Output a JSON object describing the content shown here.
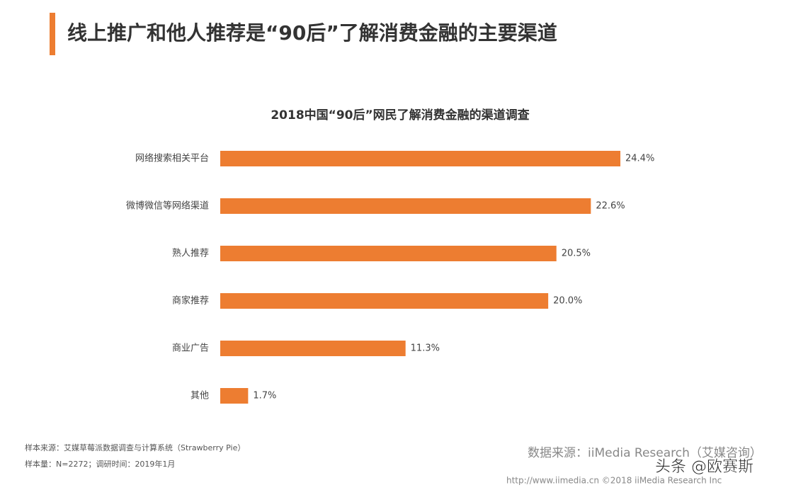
{
  "header": {
    "title": "线上推广和他人推荐是“90后”了解消费金融的主要渠道"
  },
  "chart_data": {
    "type": "bar",
    "orientation": "horizontal",
    "title": "2018中国“90后”网民了解消费金融的渠道调查",
    "categories": [
      "网络搜索相关平台",
      "微博微信等网络渠道",
      "熟人推荐",
      "商家推荐",
      "商业广告",
      "其他"
    ],
    "values": [
      24.4,
      22.6,
      20.5,
      20.0,
      11.3,
      1.7
    ],
    "value_labels": [
      "24.4%",
      "22.6%",
      "20.5%",
      "20.0%",
      "11.3%",
      "1.7%"
    ],
    "color": "#ed7d31"
  },
  "notes": [
    "样本来源：艾媒草莓派数据调查与计算系统（Strawberry Pie）",
    "样本量：N=2272；调研时间：2019年1月"
  ],
  "source": "数据来源：iiMedia Research（艾媒咨询）",
  "footer": "http://www.iimedia.cn  ©2018  iiMedia Research Inc",
  "watermark": "头条 @欧赛斯"
}
